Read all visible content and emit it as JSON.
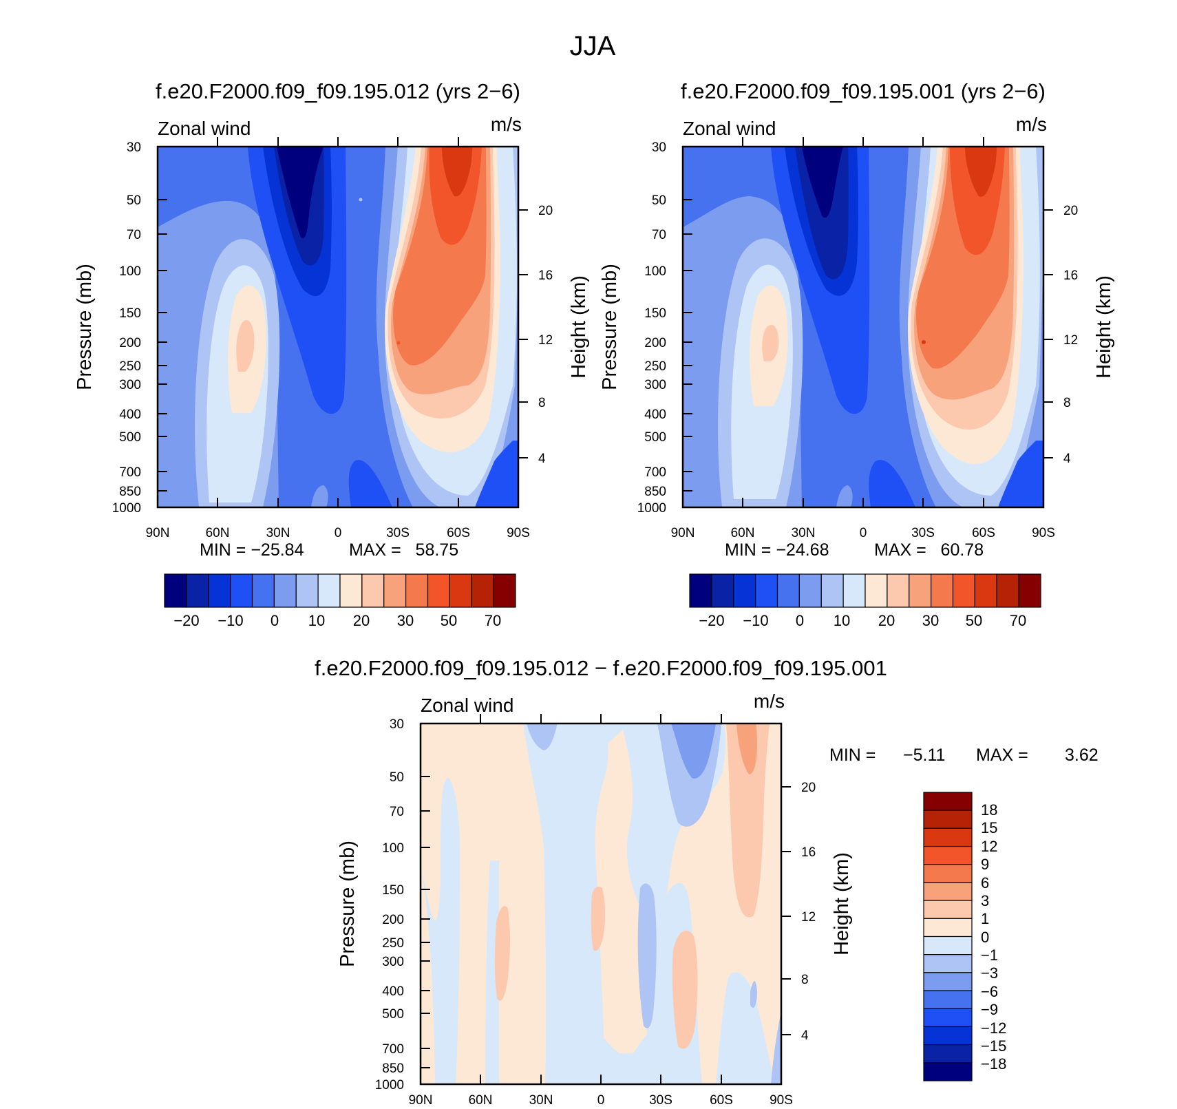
{
  "figure_title": "JJA",
  "colors": {
    "main_scale": [
      "#00007f",
      "#0a22a6",
      "#0533d6",
      "#1e50f5",
      "#4672f0",
      "#7c9cf0",
      "#aec4f5",
      "#d6e8fa",
      "#fde8d6",
      "#fcc8ae",
      "#f8a27c",
      "#f47a4e",
      "#f2552a",
      "#d93810",
      "#b62206",
      "#850000"
    ],
    "diff_scale": [
      "#00007f",
      "#0a22a6",
      "#0533d6",
      "#1e50f5",
      "#4672f0",
      "#7c9cf0",
      "#aec4f5",
      "#d6e8fa",
      "#fde8d6",
      "#fcc8ae",
      "#f8a27c",
      "#f47a4e",
      "#f2552a",
      "#d93810",
      "#b62206",
      "#850000"
    ]
  },
  "chart_data": [
    {
      "type": "contour",
      "title": "f.e20.F2000.f09_f09.195.012 (yrs 2−6)",
      "left_label": "Zonal wind",
      "right_label": "m/s",
      "ylabel": "Pressure (mb)",
      "ylabel_right": "Height (km)",
      "xticks": [
        "90N",
        "60N",
        "30N",
        "0",
        "30S",
        "60S",
        "90S"
      ],
      "yticks": [
        30,
        50,
        70,
        100,
        150,
        200,
        250,
        300,
        400,
        500,
        700,
        850,
        1000
      ],
      "height_ticks": [
        4,
        8,
        12,
        16,
        20
      ],
      "min_label": "MIN = −25.84",
      "max_label": "MAX =   58.75",
      "min": -25.84,
      "max": 58.75,
      "levels": [
        -25,
        -20,
        -15,
        -10,
        -5,
        0,
        5,
        10,
        15,
        20,
        25,
        30,
        40,
        50,
        60,
        70
      ],
      "colorbar_labels": [
        "−20",
        "−10",
        "0",
        "10",
        "20",
        "30",
        "50",
        "70"
      ]
    },
    {
      "type": "contour",
      "title": "f.e20.F2000.f09_f09.195.001 (yrs 2−6)",
      "left_label": "Zonal wind",
      "right_label": "m/s",
      "ylabel": "Pressure (mb)",
      "ylabel_right": "Height (km)",
      "xticks": [
        "90N",
        "60N",
        "30N",
        "0",
        "30S",
        "60S",
        "90S"
      ],
      "yticks": [
        30,
        50,
        70,
        100,
        150,
        200,
        250,
        300,
        400,
        500,
        700,
        850,
        1000
      ],
      "height_ticks": [
        4,
        8,
        12,
        16,
        20
      ],
      "min_label": "MIN = −24.68",
      "max_label": "MAX =   60.78",
      "min": -24.68,
      "max": 60.78,
      "levels": [
        -25,
        -20,
        -15,
        -10,
        -5,
        0,
        5,
        10,
        15,
        20,
        25,
        30,
        40,
        50,
        60,
        70
      ],
      "colorbar_labels": [
        "−20",
        "−10",
        "0",
        "10",
        "20",
        "30",
        "50",
        "70"
      ]
    },
    {
      "type": "contour",
      "title": "f.e20.F2000.f09_f09.195.012 − f.e20.F2000.f09_f09.195.001",
      "left_label": "Zonal wind",
      "right_label": "m/s",
      "ylabel": "Pressure (mb)",
      "ylabel_right": "Height (km)",
      "xticks": [
        "90N",
        "60N",
        "30N",
        "0",
        "30S",
        "60S",
        "90S"
      ],
      "yticks": [
        30,
        50,
        70,
        100,
        150,
        200,
        250,
        300,
        400,
        500,
        700,
        850,
        1000
      ],
      "height_ticks": [
        4,
        8,
        12,
        16,
        20
      ],
      "min_label": "MIN =",
      "min_value": "−5.11",
      "max_label": "MAX =",
      "max_value": "3.62",
      "min": -5.11,
      "max": 3.62,
      "levels": [
        -18,
        -15,
        -12,
        -9,
        -6,
        -3,
        -1,
        0,
        1,
        3,
        6,
        9,
        12,
        15,
        18
      ],
      "colorbar_labels": [
        "18",
        "15",
        "12",
        "9",
        "6",
        "3",
        "1",
        "0",
        "−1",
        "−3",
        "−6",
        "−9",
        "−12",
        "−15",
        "−18"
      ]
    }
  ]
}
